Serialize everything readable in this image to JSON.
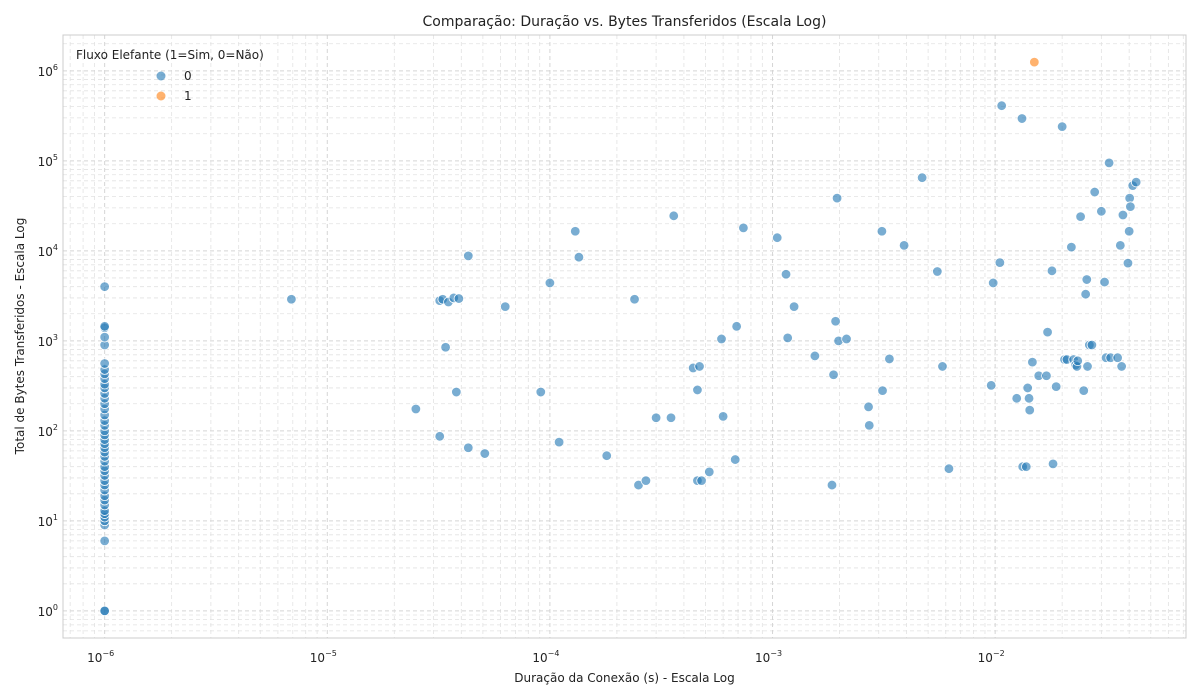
{
  "chart_data": {
    "type": "scatter",
    "title": "Comparação: Duração vs. Bytes Transferidos (Escala Log)",
    "xlabel": "Duração da Conexão (s) - Escala Log",
    "ylabel": "Total de Bytes Transferidos - Escala Log",
    "xscale": "log",
    "yscale": "log",
    "xlim": [
      6.5e-07,
      0.072
    ],
    "ylim": [
      0.5,
      2500000
    ],
    "x_ticks": [
      {
        "base": "10",
        "exp": "−6",
        "value": 1e-06
      },
      {
        "base": "10",
        "exp": "−5",
        "value": 1e-05
      },
      {
        "base": "10",
        "exp": "−4",
        "value": 0.0001
      },
      {
        "base": "10",
        "exp": "−3",
        "value": 0.001
      },
      {
        "base": "10",
        "exp": "−2",
        "value": 0.01
      }
    ],
    "y_ticks": [
      {
        "base": "10",
        "exp": "0",
        "value": 1
      },
      {
        "base": "10",
        "exp": "1",
        "value": 10
      },
      {
        "base": "10",
        "exp": "2",
        "value": 100
      },
      {
        "base": "10",
        "exp": "3",
        "value": 1000
      },
      {
        "base": "10",
        "exp": "4",
        "value": 10000
      },
      {
        "base": "10",
        "exp": "5",
        "value": 100000
      },
      {
        "base": "10",
        "exp": "6",
        "value": 1000000
      }
    ],
    "grid": true,
    "legend": {
      "title": "Fluxo Elefante (1=Sim, 0=Não)",
      "placement": "top-left",
      "entries": [
        {
          "label": "0",
          "color": "#1f77b4"
        },
        {
          "label": "1",
          "color": "#ff7f0e"
        }
      ]
    },
    "series": [
      {
        "name": "0",
        "color": "#1f77b4",
        "points": [
          [
            1e-06,
            1
          ],
          [
            1e-06,
            1
          ],
          [
            1e-06,
            6
          ],
          [
            1e-06,
            9
          ],
          [
            1e-06,
            10
          ],
          [
            1e-06,
            11
          ],
          [
            1e-06,
            12
          ],
          [
            1e-06,
            13
          ],
          [
            1e-06,
            15
          ],
          [
            1e-06,
            17
          ],
          [
            1e-06,
            19
          ],
          [
            1e-06,
            22
          ],
          [
            1e-06,
            25
          ],
          [
            1e-06,
            28
          ],
          [
            1e-06,
            32
          ],
          [
            1e-06,
            36
          ],
          [
            1e-06,
            40
          ],
          [
            1e-06,
            46
          ],
          [
            1e-06,
            52
          ],
          [
            1e-06,
            58
          ],
          [
            1e-06,
            65
          ],
          [
            1e-06,
            72
          ],
          [
            1e-06,
            80
          ],
          [
            1e-06,
            90
          ],
          [
            1e-06,
            100
          ],
          [
            1e-06,
            115
          ],
          [
            1e-06,
            130
          ],
          [
            1e-06,
            150
          ],
          [
            1e-06,
            175
          ],
          [
            1e-06,
            200
          ],
          [
            1e-06,
            230
          ],
          [
            1e-06,
            260
          ],
          [
            1e-06,
            300
          ],
          [
            1e-06,
            330
          ],
          [
            1e-06,
            380
          ],
          [
            1e-06,
            430
          ],
          [
            1e-06,
            480
          ],
          [
            1e-06,
            560
          ],
          [
            1e-06,
            900
          ],
          [
            1e-06,
            1100
          ],
          [
            1e-06,
            1400
          ],
          [
            1e-06,
            1450
          ],
          [
            1e-06,
            4000
          ],
          [
            6.9e-06,
            2900
          ],
          [
            2.5e-05,
            175
          ],
          [
            3.2e-05,
            2800
          ],
          [
            3.3e-05,
            2900
          ],
          [
            3.4e-05,
            850
          ],
          [
            3.5e-05,
            2700
          ],
          [
            3.7e-05,
            3000
          ],
          [
            3.9e-05,
            2950
          ],
          [
            3.8e-05,
            270
          ],
          [
            3.2e-05,
            87
          ],
          [
            4.3e-05,
            65
          ],
          [
            4.3e-05,
            8800
          ],
          [
            5.1e-05,
            56
          ],
          [
            6.3e-05,
            2400
          ],
          [
            9.1e-05,
            270
          ],
          [
            0.0001,
            4400
          ],
          [
            0.00011,
            75
          ],
          [
            0.00013,
            16500
          ],
          [
            0.000135,
            8500
          ],
          [
            0.00018,
            53
          ],
          [
            0.00024,
            2900
          ],
          [
            0.00025,
            25
          ],
          [
            0.00027,
            28
          ],
          [
            0.0003,
            140
          ],
          [
            0.00035,
            140
          ],
          [
            0.00036,
            24500
          ],
          [
            0.00044,
            500
          ],
          [
            0.00046,
            285
          ],
          [
            0.00046,
            28
          ],
          [
            0.00047,
            520
          ],
          [
            0.00048,
            28
          ],
          [
            0.00052,
            35
          ],
          [
            0.00059,
            1050
          ],
          [
            0.0006,
            145
          ],
          [
            0.00068,
            48
          ],
          [
            0.00069,
            1450
          ],
          [
            0.00074,
            18000
          ],
          [
            0.00105,
            14000
          ],
          [
            0.00115,
            5500
          ],
          [
            0.00117,
            1080
          ],
          [
            0.00125,
            2400
          ],
          [
            0.00155,
            680
          ],
          [
            0.00185,
            25
          ],
          [
            0.00188,
            420
          ],
          [
            0.00192,
            1650
          ],
          [
            0.00195,
            38500
          ],
          [
            0.00198,
            1000
          ],
          [
            0.00215,
            1050
          ],
          [
            0.0027,
            185
          ],
          [
            0.00272,
            115
          ],
          [
            0.0031,
            16500
          ],
          [
            0.00312,
            280
          ],
          [
            0.00335,
            630
          ],
          [
            0.0039,
            11500
          ],
          [
            0.0047,
            65000
          ],
          [
            0.0055,
            5900
          ],
          [
            0.0058,
            520
          ],
          [
            0.0062,
            38
          ],
          [
            0.0096,
            320
          ],
          [
            0.0098,
            4400
          ],
          [
            0.0105,
            7400
          ],
          [
            0.0107,
            410000
          ],
          [
            0.0125,
            230
          ],
          [
            0.0132,
            295000
          ],
          [
            0.0133,
            40
          ],
          [
            0.0138,
            40
          ],
          [
            0.014,
            300
          ],
          [
            0.0142,
            230
          ],
          [
            0.0143,
            170
          ],
          [
            0.0147,
            580
          ],
          [
            0.0157,
            410
          ],
          [
            0.017,
            410
          ],
          [
            0.0172,
            1250
          ],
          [
            0.018,
            6000
          ],
          [
            0.0182,
            43
          ],
          [
            0.0188,
            310
          ],
          [
            0.02,
            240000
          ],
          [
            0.0205,
            620
          ],
          [
            0.021,
            620
          ],
          [
            0.022,
            11000
          ],
          [
            0.0225,
            620
          ],
          [
            0.023,
            540
          ],
          [
            0.0233,
            520
          ],
          [
            0.0235,
            600
          ],
          [
            0.0242,
            24000
          ],
          [
            0.025,
            280
          ],
          [
            0.0255,
            3300
          ],
          [
            0.0258,
            4800
          ],
          [
            0.026,
            520
          ],
          [
            0.0265,
            900
          ],
          [
            0.0272,
            900
          ],
          [
            0.028,
            45000
          ],
          [
            0.03,
            27500
          ],
          [
            0.031,
            4500
          ],
          [
            0.0315,
            650
          ],
          [
            0.0325,
            95000
          ],
          [
            0.033,
            650
          ],
          [
            0.0355,
            650
          ],
          [
            0.0365,
            11500
          ],
          [
            0.037,
            520
          ],
          [
            0.0375,
            25000
          ],
          [
            0.0395,
            7300
          ],
          [
            0.04,
            16500
          ],
          [
            0.0402,
            38500
          ],
          [
            0.0405,
            31000
          ],
          [
            0.0415,
            53000
          ],
          [
            0.043,
            58000
          ]
        ]
      },
      {
        "name": "1",
        "color": "#ff7f0e",
        "points": [
          [
            0.015,
            1250000
          ]
        ]
      }
    ]
  }
}
